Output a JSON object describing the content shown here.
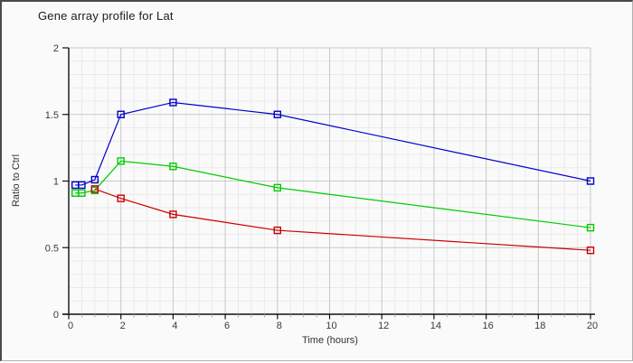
{
  "chart_data": {
    "type": "line",
    "title": "Gene array profile for Lat",
    "xlabel": "Time (hours)",
    "ylabel": "Ratio to Ctrl",
    "xlim": [
      0,
      20
    ],
    "ylim": [
      0,
      2
    ],
    "x_tick_values": [
      0,
      2,
      4,
      6,
      8,
      10,
      12,
      14,
      16,
      18,
      20
    ],
    "x_tick_labels": [
      "0",
      "2",
      "4",
      "6",
      "8",
      "10",
      "12",
      "14",
      "16",
      "18",
      "20"
    ],
    "y_tick_values": [
      0,
      0.5,
      1,
      1.5,
      2
    ],
    "y_tick_labels": [
      "0",
      "0.5",
      "1",
      "1.5",
      "2"
    ],
    "x_minor_step": 0.5,
    "y_minor_step": 0.1,
    "grid": "on",
    "legend": "none",
    "marker_style": "open-square",
    "series": [
      {
        "name": "blue-series",
        "color": "#0000cc",
        "points": [
          [
            0.25,
            0.97
          ],
          [
            0.5,
            0.97
          ],
          [
            1,
            1.01
          ],
          [
            2,
            1.5
          ],
          [
            4,
            1.59
          ],
          [
            8,
            1.5
          ],
          [
            20,
            1.0
          ]
        ]
      },
      {
        "name": "green-series",
        "color": "#00cc00",
        "points": [
          [
            0.25,
            0.91
          ],
          [
            0.5,
            0.91
          ],
          [
            1,
            0.93
          ],
          [
            2,
            1.15
          ],
          [
            4,
            1.11
          ],
          [
            8,
            0.95
          ],
          [
            20,
            0.65
          ]
        ]
      },
      {
        "name": "red-series",
        "color": "#cc0000",
        "points": [
          [
            1,
            0.94
          ],
          [
            2,
            0.87
          ],
          [
            4,
            0.75
          ],
          [
            8,
            0.63
          ],
          [
            20,
            0.48
          ]
        ]
      }
    ]
  },
  "colors": {
    "background": "#fafafa",
    "grid_major": "#c8c8c8",
    "grid_minor": "#eaeaea",
    "axis": "#111111",
    "minor_tick": "#aaaaaa",
    "tick_text": "#3a3a3a",
    "label_text": "#333333"
  }
}
